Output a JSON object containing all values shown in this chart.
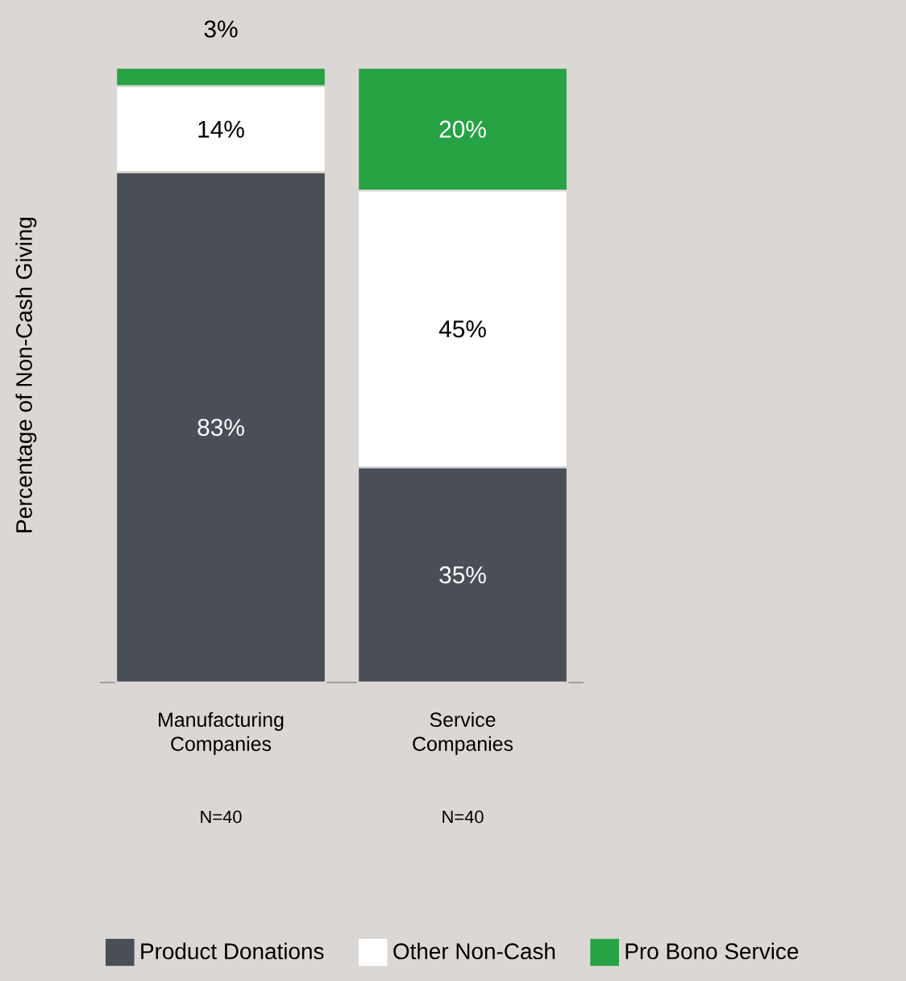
{
  "chart_data": {
    "type": "bar",
    "stacked": true,
    "ylabel": "Percentage of Non-Cash Giving",
    "categories": [
      "Manufacturing Companies",
      "Service Companies"
    ],
    "series": [
      {
        "name": "Product Donations",
        "color": "#4a4e57",
        "values": [
          83,
          35
        ],
        "value_labels": [
          "83%",
          "35%"
        ]
      },
      {
        "name": "Other Non-Cash",
        "color": "#ffffff",
        "values": [
          14,
          45
        ],
        "value_labels": [
          "14%",
          "45%"
        ]
      },
      {
        "name": "Pro Bono Service",
        "color": "#27a244",
        "values": [
          3,
          20
        ],
        "value_labels": [
          "3%",
          "20%"
        ]
      }
    ],
    "annotations": [
      "N=40",
      "N=40"
    ],
    "legend": "bottom",
    "tick_labels": "x"
  }
}
